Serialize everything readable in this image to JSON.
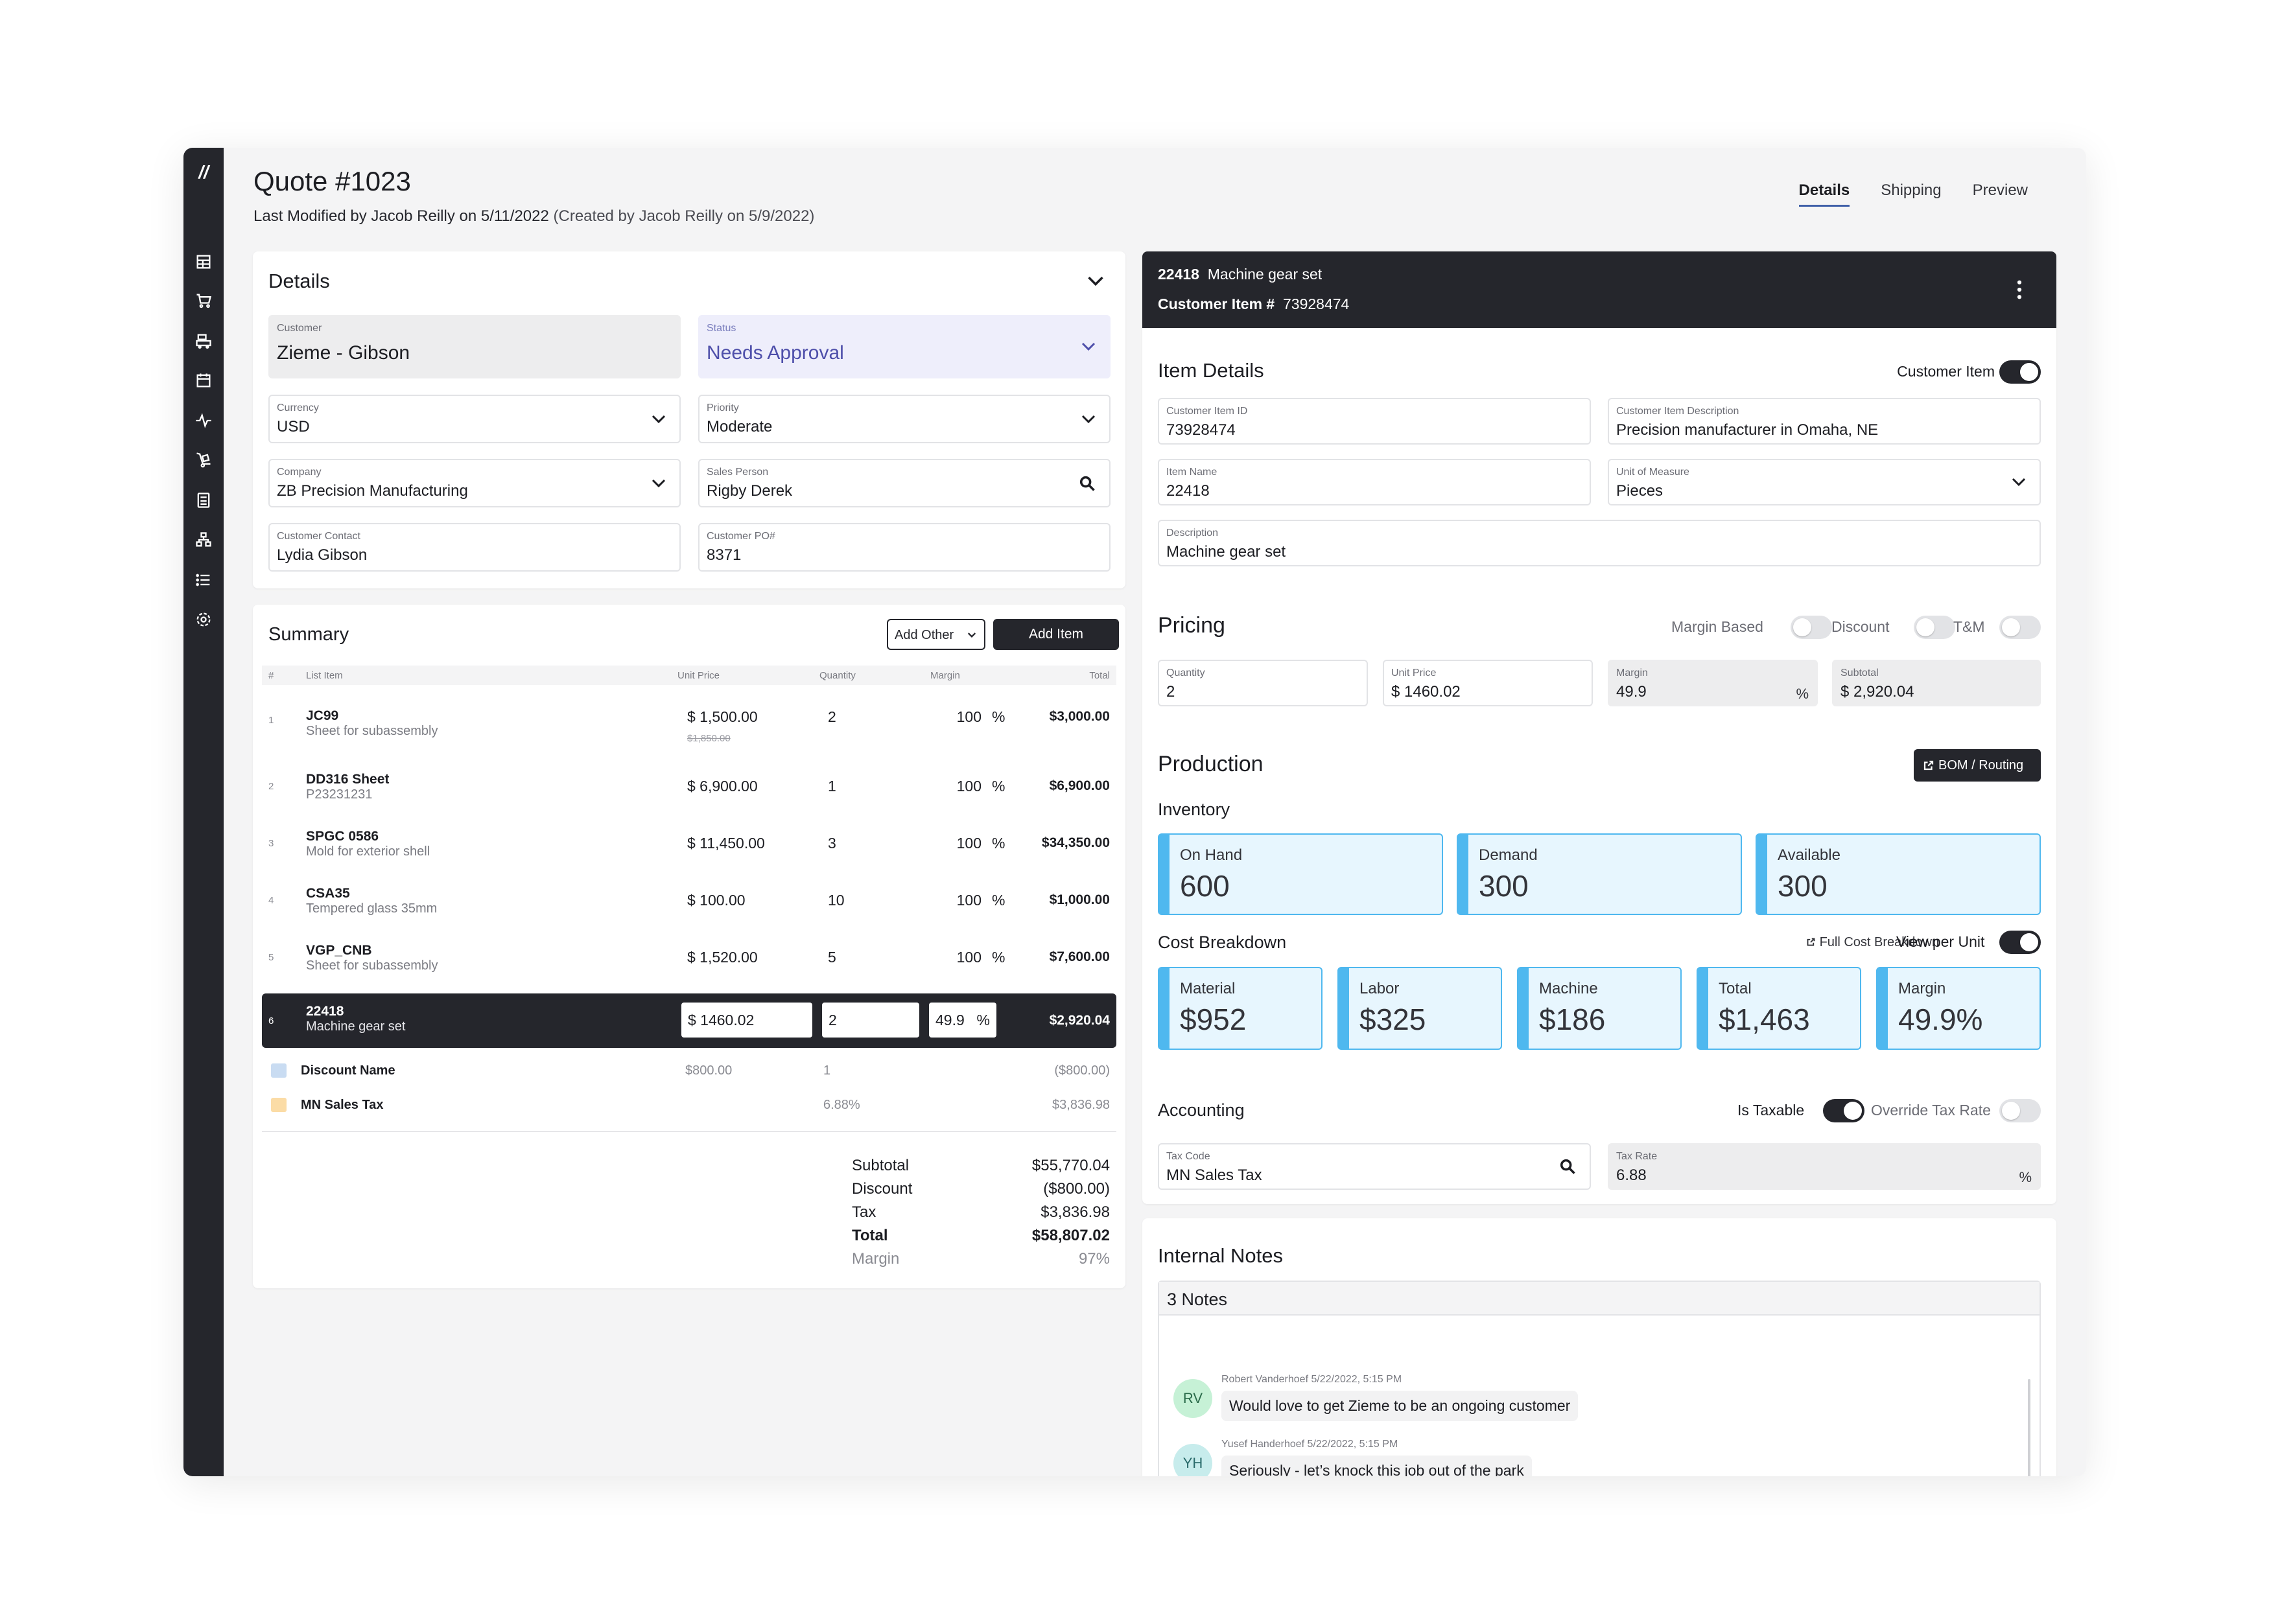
{
  "sidebar": {
    "logo": "//",
    "icons": [
      "dashboard-icon",
      "cart-icon",
      "warehouse-icon",
      "calendar-icon",
      "activity-icon",
      "dolly-icon",
      "calculator-icon",
      "sitemap-icon",
      "list-icon",
      "settings-icon"
    ]
  },
  "header": {
    "title": "Quote #1023",
    "modified": "Last Modified by Jacob Reilly on 5/11/2022",
    "created": " (Created by Jacob Reilly on 5/9/2022)",
    "tabs": [
      "Details",
      "Shipping",
      "Preview"
    ],
    "active_tab": "Details"
  },
  "details": {
    "title": "Details",
    "customer": {
      "label": "Customer",
      "value": "Zieme - Gibson"
    },
    "status": {
      "label": "Status",
      "value": "Needs Approval"
    },
    "currency": {
      "label": "Currency",
      "value": "USD"
    },
    "priority": {
      "label": "Priority",
      "value": "Moderate"
    },
    "company": {
      "label": "Company",
      "value": "ZB Precision Manufacturing"
    },
    "sales_person": {
      "label": "Sales Person",
      "value": "Rigby Derek"
    },
    "customer_contact": {
      "label": "Customer Contact",
      "value": "Lydia Gibson"
    },
    "customer_po": {
      "label": "Customer PO#",
      "value": "8371"
    }
  },
  "summary": {
    "title": "Summary",
    "add_other": "Add Other",
    "add_item": "Add Item",
    "columns": {
      "num": "#",
      "item": "List Item",
      "unit_price": "Unit Price",
      "quantity": "Quantity",
      "margin": "Margin",
      "total": "Total"
    },
    "rows": [
      {
        "n": "1",
        "name": "JC99",
        "desc": "Sheet for subassembly",
        "unit_price": "$ 1,500.00",
        "old_price": "$1,850.00",
        "qty": "2",
        "margin": "100",
        "pct": "%",
        "total": "$3,000.00"
      },
      {
        "n": "2",
        "name": "DD316 Sheet",
        "desc": "P23231231",
        "unit_price": "$ 6,900.00",
        "qty": "1",
        "margin": "100",
        "pct": "%",
        "total": "$6,900.00"
      },
      {
        "n": "3",
        "name": "SPGC 0586",
        "desc": "Mold for exterior shell",
        "unit_price": "$ 11,450.00",
        "qty": "3",
        "margin": "100",
        "pct": "%",
        "total": "$34,350.00"
      },
      {
        "n": "4",
        "name": "CSA35",
        "desc": "Tempered glass 35mm",
        "unit_price": "$ 100.00",
        "qty": "10",
        "margin": "100",
        "pct": "%",
        "total": "$1,000.00"
      },
      {
        "n": "5",
        "name": "VGP_CNB",
        "desc": "Sheet for subassembly",
        "unit_price": "$ 1,520.00",
        "qty": "5",
        "margin": "100",
        "pct": "%",
        "total": "$7,600.00"
      }
    ],
    "selected": {
      "n": "6",
      "name": "22418",
      "desc": "Machine gear set",
      "unit_price": "$ 1460.02",
      "qty": "2",
      "margin": "49.9",
      "pct": "%",
      "total": "$2,920.04"
    },
    "discount": {
      "name": "Discount Name",
      "amount": "$800.00",
      "qty": "1",
      "total": "($800.00)",
      "color": "#c9dcf2"
    },
    "tax": {
      "name": "MN Sales Tax",
      "rate": "6.88%",
      "total": "$3,836.98",
      "color": "#fbdca6"
    },
    "totals": {
      "subtotal_label": "Subtotal",
      "subtotal": "$55,770.04",
      "discount_label": "Discount",
      "discount": "($800.00)",
      "tax_label": "Tax",
      "tax": "$3,836.98",
      "total_label": "Total",
      "total": "$58,807.02",
      "margin_label": "Margin",
      "margin": "97%"
    }
  },
  "item": {
    "header_code": "22418",
    "header_name": "Machine gear set",
    "customer_item_label": "Customer Item #",
    "customer_item_no": "73928474",
    "details_title": "Item Details",
    "customer_item_toggle": "Customer Item",
    "customer_item_id": {
      "label": "Customer Item ID",
      "value": "73928474"
    },
    "customer_item_desc": {
      "label": "Customer Item Description",
      "value": "Precision manufacturer in Omaha, NE"
    },
    "item_name": {
      "label": "Item Name",
      "value": "22418"
    },
    "unit_of_measure": {
      "label": "Unit of Measure",
      "value": "Pieces"
    },
    "description": {
      "label": "Description",
      "value": "Machine gear set"
    }
  },
  "pricing": {
    "title": "Pricing",
    "toggles": {
      "margin_based": "Margin Based",
      "discount": "Discount",
      "tm": "T&M"
    },
    "quantity": {
      "label": "Quantity",
      "value": "2"
    },
    "unit_price": {
      "label": "Unit Price",
      "value": "$ 1460.02"
    },
    "margin": {
      "label": "Margin",
      "value": "49.9",
      "suffix": "%"
    },
    "subtotal": {
      "label": "Subtotal",
      "value": "$ 2,920.04"
    }
  },
  "production": {
    "title": "Production",
    "bom_button": "BOM / Routing",
    "inventory_title": "Inventory",
    "inventory": [
      {
        "label": "On Hand",
        "value": "600"
      },
      {
        "label": "Demand",
        "value": "300"
      },
      {
        "label": "Available",
        "value": "300"
      }
    ],
    "cost_title": "Cost Breakdown",
    "full_cost": "Full Cost Breakdown",
    "view_per_unit": "View per Unit",
    "costs": [
      {
        "label": "Material",
        "value": "$952"
      },
      {
        "label": "Labor",
        "value": "$325"
      },
      {
        "label": "Machine",
        "value": "$186"
      },
      {
        "label": "Total",
        "value": "$1,463"
      },
      {
        "label": "Margin",
        "value": "49.9%"
      }
    ],
    "tile_color": "#4fb8ef"
  },
  "accounting": {
    "title": "Accounting",
    "is_taxable": "Is Taxable",
    "override": "Override Tax Rate",
    "tax_code": {
      "label": "Tax Code",
      "value": "MN Sales Tax"
    },
    "tax_rate": {
      "label": "Tax Rate",
      "value": "6.88",
      "suffix": "%"
    }
  },
  "notes": {
    "title": "Internal Notes",
    "count": "3 Notes",
    "items": [
      {
        "initials": "RV",
        "meta": "Robert Vanderhoef 5/22/2022, 5:15 PM",
        "text": "Would love to get Zieme to be an ongoing customer",
        "color": "#c6f1d6"
      },
      {
        "initials": "YH",
        "meta": "Yusef Handerhoef 5/22/2022, 5:15 PM",
        "text": "Seriously - let’s knock this job out of the park",
        "color": "#c7ecec"
      }
    ]
  }
}
